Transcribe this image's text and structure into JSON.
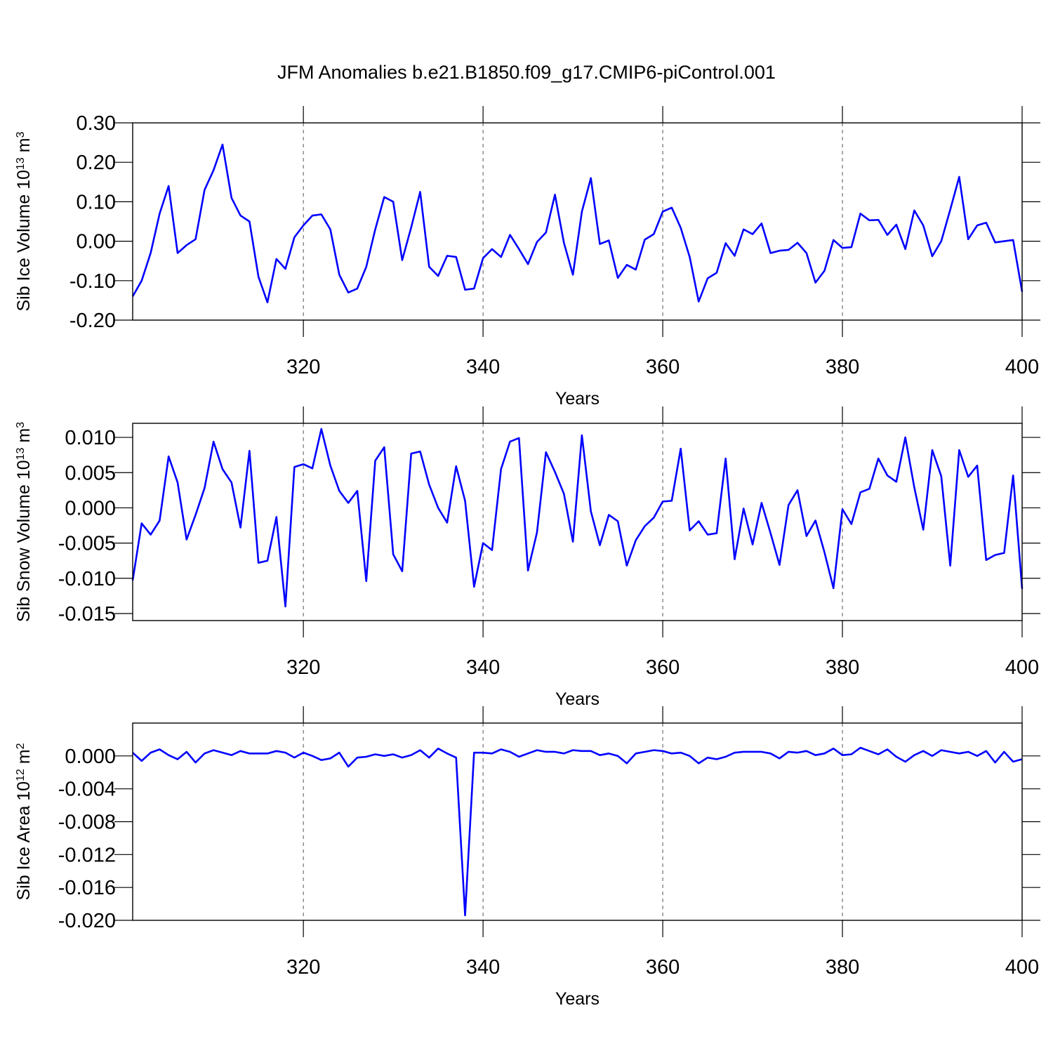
{
  "chart_data": [
    {
      "type": "line",
      "title": "JFM Anomalies b.e21.B1850.f09_g17.CMIP6-piControl.001",
      "xlabel": "Years",
      "ylabel": [
        {
          "text": "Sib Ice Volume 10"
        },
        {
          "text": "13",
          "sup": true
        },
        {
          "text": " m"
        },
        {
          "text": "3",
          "sup": true
        }
      ],
      "color": "#0000ff",
      "grid": true,
      "xlim": [
        301,
        400
      ],
      "xticks": [
        320,
        340,
        360,
        380,
        400
      ],
      "ylim": [
        -0.2,
        0.3
      ],
      "yticks": [
        {
          "value": 0.3,
          "label": "0.30"
        },
        {
          "value": 0.2,
          "label": "0.20"
        },
        {
          "value": 0.1,
          "label": "0.10"
        },
        {
          "value": 0,
          "label": "0.00"
        },
        {
          "value": -0.1,
          "label": "-0.10"
        },
        {
          "value": -0.2,
          "label": "-0.20"
        }
      ],
      "x": [
        301,
        302,
        303,
        304,
        305,
        306,
        307,
        308,
        309,
        310,
        311,
        312,
        313,
        314,
        315,
        316,
        317,
        318,
        319,
        320,
        321,
        322,
        323,
        324,
        325,
        326,
        327,
        328,
        329,
        330,
        331,
        332,
        333,
        334,
        335,
        336,
        337,
        338,
        339,
        340,
        341,
        342,
        343,
        344,
        345,
        346,
        347,
        348,
        349,
        350,
        351,
        352,
        353,
        354,
        355,
        356,
        357,
        358,
        359,
        360,
        361,
        362,
        363,
        364,
        365,
        366,
        367,
        368,
        369,
        370,
        371,
        372,
        373,
        374,
        375,
        376,
        377,
        378,
        379,
        380,
        381,
        382,
        383,
        384,
        385,
        386,
        387,
        388,
        389,
        390,
        391,
        392,
        393,
        394,
        395,
        396,
        397,
        398,
        399,
        400
      ],
      "values": [
        -0.14,
        -0.1,
        -0.03,
        0.07,
        0.14,
        -0.03,
        -0.01,
        0.005,
        0.13,
        0.18,
        0.245,
        0.11,
        0.065,
        0.05,
        -0.09,
        -0.155,
        -0.045,
        -0.07,
        0.01,
        0.04,
        0.065,
        0.068,
        0.03,
        -0.085,
        -0.13,
        -0.12,
        -0.065,
        0.03,
        0.112,
        0.1,
        -0.048,
        0.035,
        0.125,
        -0.065,
        -0.088,
        -0.037,
        -0.04,
        -0.123,
        -0.12,
        -0.043,
        -0.02,
        -0.04,
        0.016,
        -0.02,
        -0.058,
        -0.002,
        0.022,
        0.118,
        -0.004,
        -0.085,
        0.075,
        0.16,
        -0.007,
        0.002,
        -0.093,
        -0.06,
        -0.072,
        0.004,
        0.018,
        0.075,
        0.085,
        0.034,
        -0.04,
        -0.153,
        -0.094,
        -0.08,
        -0.005,
        -0.037,
        0.03,
        0.018,
        0.045,
        -0.03,
        -0.024,
        -0.022,
        -0.004,
        -0.03,
        -0.105,
        -0.075,
        0.003,
        -0.017,
        -0.015,
        0.07,
        0.053,
        0.054,
        0.016,
        0.042,
        -0.02,
        0.078,
        0.04,
        -0.038,
        0.0,
        0.08,
        0.163,
        0.005,
        0.04,
        0.047,
        -0.003,
        0.0,
        0.003,
        -0.128
      ]
    },
    {
      "type": "line",
      "xlabel": "Years",
      "ylabel": [
        {
          "text": "Sib Snow Volume 10"
        },
        {
          "text": "13",
          "sup": true
        },
        {
          "text": " m"
        },
        {
          "text": "3",
          "sup": true
        }
      ],
      "color": "#0000ff",
      "grid": true,
      "xlim": [
        301,
        400
      ],
      "xticks": [
        320,
        340,
        360,
        380,
        400
      ],
      "ylim": [
        -0.016,
        0.012
      ],
      "yticks": [
        {
          "value": 0.01,
          "label": "0.010"
        },
        {
          "value": 0.005,
          "label": "0.005"
        },
        {
          "value": 0,
          "label": "0.000"
        },
        {
          "value": -0.005,
          "label": "-0.005"
        },
        {
          "value": -0.01,
          "label": "-0.010"
        },
        {
          "value": -0.015,
          "label": "-0.015"
        }
      ],
      "x": [
        301,
        302,
        303,
        304,
        305,
        306,
        307,
        308,
        309,
        310,
        311,
        312,
        313,
        314,
        315,
        316,
        317,
        318,
        319,
        320,
        321,
        322,
        323,
        324,
        325,
        326,
        327,
        328,
        329,
        330,
        331,
        332,
        333,
        334,
        335,
        336,
        337,
        338,
        339,
        340,
        341,
        342,
        343,
        344,
        345,
        346,
        347,
        348,
        349,
        350,
        351,
        352,
        353,
        354,
        355,
        356,
        357,
        358,
        359,
        360,
        361,
        362,
        363,
        364,
        365,
        366,
        367,
        368,
        369,
        370,
        371,
        372,
        373,
        374,
        375,
        376,
        377,
        378,
        379,
        380,
        381,
        382,
        383,
        384,
        385,
        386,
        387,
        388,
        389,
        390,
        391,
        392,
        393,
        394,
        395,
        396,
        397,
        398,
        399,
        400
      ],
      "values": [
        -0.0103,
        -0.0022,
        -0.0038,
        -0.0018,
        0.0073,
        0.0036,
        -0.0045,
        -0.001,
        0.0028,
        0.0094,
        0.0055,
        0.0036,
        -0.0028,
        0.0081,
        -0.0078,
        -0.0075,
        -0.0013,
        -0.014,
        0.0058,
        0.0062,
        0.0056,
        0.0112,
        0.006,
        0.0024,
        0.0007,
        0.0024,
        -0.0104,
        0.0067,
        0.0086,
        -0.0066,
        -0.009,
        0.0077,
        0.008,
        0.0033,
        0.0,
        -0.0021,
        0.0059,
        0.001,
        -0.0112,
        -0.005,
        -0.006,
        0.0055,
        0.0094,
        0.0099,
        -0.0089,
        -0.0035,
        0.0079,
        0.0051,
        0.002,
        -0.0048,
        0.0103,
        -0.0005,
        -0.0053,
        -0.001,
        -0.0019,
        -0.0082,
        -0.0046,
        -0.0026,
        -0.0014,
        0.0009,
        0.001,
        0.0084,
        -0.0032,
        -0.0019,
        -0.0038,
        -0.0036,
        0.007,
        -0.0073,
        -0.0001,
        -0.0052,
        0.0007,
        -0.0036,
        -0.0081,
        0.0004,
        0.0025,
        -0.004,
        -0.0018,
        -0.0063,
        -0.0114,
        -0.0002,
        -0.0023,
        0.0022,
        0.0027,
        0.007,
        0.0046,
        0.0037,
        0.01,
        0.0029,
        -0.0031,
        0.0082,
        0.0045,
        -0.0082,
        0.0082,
        0.0044,
        0.006,
        -0.0074,
        -0.0067,
        -0.0064,
        0.0046,
        -0.0115
      ]
    },
    {
      "type": "line",
      "xlabel": "Years",
      "ylabel": [
        {
          "text": "Sib Ice Area 10"
        },
        {
          "text": "12",
          "sup": true
        },
        {
          "text": " m"
        },
        {
          "text": "2",
          "sup": true
        }
      ],
      "color": "#0000ff",
      "grid": true,
      "xlim": [
        301,
        400
      ],
      "xticks": [
        320,
        340,
        360,
        380,
        400
      ],
      "ylim": [
        -0.02,
        0.004
      ],
      "yticks": [
        {
          "value": 0,
          "label": "0.000"
        },
        {
          "value": -0.004,
          "label": "-0.004"
        },
        {
          "value": -0.008,
          "label": "-0.008"
        },
        {
          "value": -0.012,
          "label": "-0.012"
        },
        {
          "value": -0.016,
          "label": "-0.016"
        },
        {
          "value": -0.02,
          "label": "-0.020"
        }
      ],
      "x": [
        301,
        302,
        303,
        304,
        305,
        306,
        307,
        308,
        309,
        310,
        311,
        312,
        313,
        314,
        315,
        316,
        317,
        318,
        319,
        320,
        321,
        322,
        323,
        324,
        325,
        326,
        327,
        328,
        329,
        330,
        331,
        332,
        333,
        334,
        335,
        336,
        337,
        338,
        339,
        340,
        341,
        342,
        343,
        344,
        345,
        346,
        347,
        348,
        349,
        350,
        351,
        352,
        353,
        354,
        355,
        356,
        357,
        358,
        359,
        360,
        361,
        362,
        363,
        364,
        365,
        366,
        367,
        368,
        369,
        370,
        371,
        372,
        373,
        374,
        375,
        376,
        377,
        378,
        379,
        380,
        381,
        382,
        383,
        384,
        385,
        386,
        387,
        388,
        389,
        390,
        391,
        392,
        393,
        394,
        395,
        396,
        397,
        398,
        399,
        400
      ],
      "values": [
        0.0004,
        -0.0006,
        0.0004,
        0.0008,
        0.0001,
        -0.0004,
        0.0005,
        -0.0008,
        0.0003,
        0.0007,
        0.0004,
        0.0001,
        0.0006,
        0.0003,
        0.0003,
        0.0003,
        0.0006,
        0.0004,
        -0.0002,
        0.0004,
        0.0,
        -0.0005,
        -0.0003,
        0.0004,
        -0.0013,
        -0.0002,
        -0.0001,
        0.0002,
        0.0,
        0.0002,
        -0.0002,
        0.0001,
        0.0007,
        -0.0002,
        0.0009,
        0.0003,
        -0.0002,
        -0.0194,
        0.0004,
        0.0004,
        0.0003,
        0.0008,
        0.0005,
        -0.0001,
        0.0003,
        0.0007,
        0.0005,
        0.0005,
        0.0003,
        0.0007,
        0.0006,
        0.0006,
        0.0001,
        0.0003,
        0.0,
        -0.0009,
        0.0003,
        0.0005,
        0.0007,
        0.0006,
        0.0003,
        0.0004,
        0.0,
        -0.0009,
        -0.0002,
        -0.0004,
        -0.0001,
        0.0004,
        0.0005,
        0.0005,
        0.0005,
        0.0003,
        -0.0003,
        0.0005,
        0.0004,
        0.0006,
        0.0001,
        0.0003,
        0.0009,
        0.0001,
        0.0002,
        0.001,
        0.0006,
        0.0002,
        0.0008,
        -0.0001,
        -0.0007,
        0.0001,
        0.0006,
        0.0,
        0.0007,
        0.0005,
        0.0003,
        0.0005,
        0.0,
        0.0006,
        -0.0008,
        0.0005,
        -0.0007,
        -0.0004
      ]
    }
  ]
}
